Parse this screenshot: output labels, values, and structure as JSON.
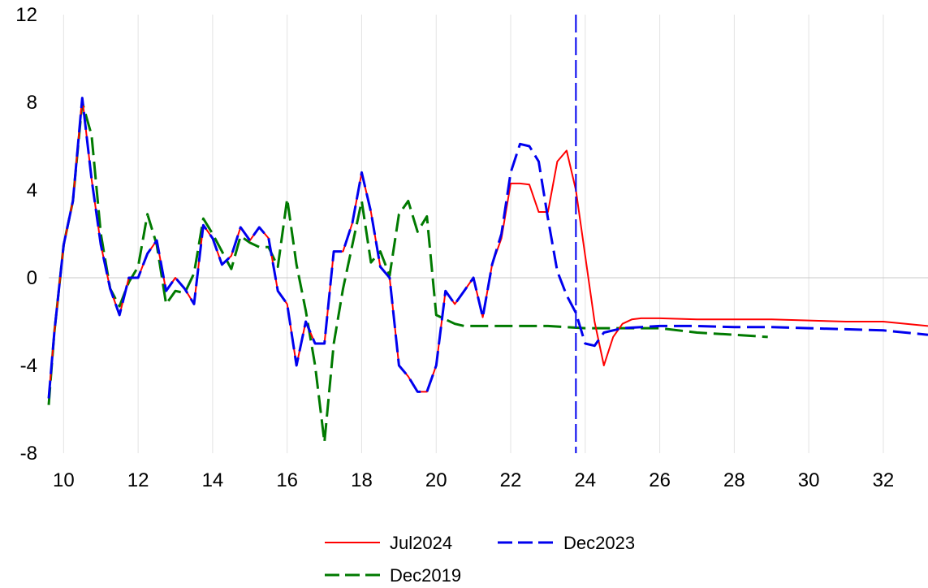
{
  "chart_data": {
    "type": "line",
    "title": "",
    "xlabel": "",
    "ylabel": "",
    "xlim": [
      9.6,
      33.2
    ],
    "ylim": [
      -8,
      12
    ],
    "xticks": [
      "10",
      "12",
      "14",
      "16",
      "18",
      "20",
      "22",
      "24",
      "26",
      "28",
      "30",
      "32"
    ],
    "xtick_values": [
      10,
      12,
      14,
      16,
      18,
      20,
      22,
      24,
      26,
      28,
      30,
      32
    ],
    "yticks": [
      "12",
      "8",
      "4",
      "0",
      "-4",
      "-8"
    ],
    "ytick_values": [
      12,
      8,
      4,
      0,
      -4,
      -8
    ],
    "grid": "vertical",
    "legend_position": "bottom",
    "vertical_marker": {
      "x": 23.75,
      "color": "#0000ee",
      "style": "dashed"
    },
    "series": [
      {
        "name": "Jul2024",
        "color": "#ff0000",
        "style": "solid",
        "x": [
          9.6,
          9.75,
          10.0,
          10.25,
          10.5,
          10.75,
          11.0,
          11.25,
          11.5,
          11.75,
          12.0,
          12.25,
          12.5,
          12.75,
          13.0,
          13.25,
          13.5,
          13.75,
          14.0,
          14.25,
          14.5,
          14.75,
          15.0,
          15.25,
          15.5,
          15.75,
          16.0,
          16.25,
          16.5,
          16.75,
          17.0,
          17.25,
          17.5,
          17.75,
          18.0,
          18.25,
          18.5,
          18.75,
          19.0,
          19.25,
          19.5,
          19.75,
          20.0,
          20.25,
          20.5,
          20.75,
          21.0,
          21.25,
          21.5,
          21.75,
          22.0,
          22.25,
          22.5,
          22.75,
          23.0,
          23.25,
          23.5,
          23.75,
          24.0,
          24.25,
          24.5,
          24.75,
          25.0,
          25.25,
          25.5,
          25.75,
          26.0,
          27.0,
          28.0,
          29.0,
          30.0,
          31.0,
          32.0,
          33.2
        ],
        "values": [
          -5.5,
          -2.5,
          1.5,
          3.5,
          8.2,
          4.5,
          1.5,
          -0.5,
          -1.7,
          0.0,
          0.0,
          1.1,
          1.7,
          -0.6,
          0.0,
          -0.5,
          -1.2,
          2.4,
          1.8,
          0.6,
          1.0,
          2.3,
          1.7,
          2.3,
          1.8,
          -0.6,
          -1.2,
          -4.0,
          -2.0,
          -3.0,
          -3.0,
          1.2,
          1.2,
          2.5,
          4.8,
          3.0,
          0.5,
          0.0,
          -4.0,
          -4.5,
          -5.2,
          -5.2,
          -4.0,
          -0.6,
          -1.2,
          -0.6,
          0.0,
          -1.8,
          0.6,
          1.8,
          4.3,
          4.3,
          4.25,
          3.0,
          3.0,
          5.3,
          5.8,
          4.0,
          1.0,
          -2.0,
          -4.0,
          -2.7,
          -2.1,
          -1.9,
          -1.85,
          -1.85,
          -1.85,
          -1.9,
          -1.9,
          -1.9,
          -1.95,
          -2.0,
          -2.0,
          -2.2
        ]
      },
      {
        "name": "Dec2023",
        "color": "#0000ee",
        "style": "dashed",
        "x": [
          9.6,
          9.75,
          10.0,
          10.25,
          10.5,
          10.75,
          11.0,
          11.25,
          11.5,
          11.75,
          12.0,
          12.25,
          12.5,
          12.75,
          13.0,
          13.25,
          13.5,
          13.75,
          14.0,
          14.25,
          14.5,
          14.75,
          15.0,
          15.25,
          15.5,
          15.75,
          16.0,
          16.25,
          16.5,
          16.75,
          17.0,
          17.25,
          17.5,
          17.75,
          18.0,
          18.25,
          18.5,
          18.75,
          19.0,
          19.25,
          19.5,
          19.75,
          20.0,
          20.25,
          20.5,
          20.75,
          21.0,
          21.25,
          21.5,
          21.75,
          22.0,
          22.25,
          22.5,
          22.75,
          23.0,
          23.25,
          23.5,
          23.75,
          24.0,
          24.25,
          24.5,
          24.75,
          25.0,
          26.0,
          27.0,
          28.0,
          29.0,
          30.0,
          31.0,
          32.0,
          33.2
        ],
        "values": [
          -5.5,
          -2.5,
          1.5,
          3.5,
          8.2,
          4.5,
          1.5,
          -0.5,
          -1.7,
          0.0,
          0.0,
          1.1,
          1.7,
          -0.6,
          0.0,
          -0.5,
          -1.2,
          2.4,
          1.8,
          0.6,
          1.0,
          2.3,
          1.7,
          2.3,
          1.8,
          -0.6,
          -1.2,
          -4.0,
          -2.0,
          -3.0,
          -3.0,
          1.2,
          1.2,
          2.5,
          4.8,
          3.0,
          0.5,
          0.0,
          -4.0,
          -4.5,
          -5.2,
          -5.2,
          -4.0,
          -0.6,
          -1.2,
          -0.6,
          0.0,
          -1.8,
          0.6,
          2.0,
          4.8,
          6.1,
          6.0,
          5.3,
          2.7,
          0.3,
          -0.8,
          -1.6,
          -3.0,
          -3.1,
          -2.5,
          -2.4,
          -2.3,
          -2.2,
          -2.2,
          -2.25,
          -2.25,
          -2.3,
          -2.35,
          -2.4,
          -2.6
        ]
      },
      {
        "name": "Dec2019",
        "color": "#007a00",
        "style": "dashed",
        "x": [
          9.6,
          9.75,
          10.0,
          10.25,
          10.5,
          10.75,
          11.0,
          11.25,
          11.5,
          11.75,
          12.0,
          12.25,
          12.5,
          12.75,
          13.0,
          13.25,
          13.5,
          13.75,
          14.0,
          14.25,
          14.5,
          14.75,
          15.0,
          15.25,
          15.5,
          15.75,
          16.0,
          16.25,
          16.5,
          16.75,
          17.0,
          17.25,
          17.5,
          17.75,
          18.0,
          18.25,
          18.5,
          18.75,
          19.0,
          19.25,
          19.5,
          19.75,
          20.0,
          20.25,
          20.5,
          20.75,
          21.0,
          21.5,
          22.0,
          23.0,
          24.0,
          25.0,
          26.0,
          27.0,
          28.0,
          28.9
        ],
        "values": [
          -5.8,
          -2.5,
          1.5,
          3.5,
          8.0,
          6.5,
          2.0,
          -0.5,
          -1.3,
          -0.2,
          0.5,
          2.9,
          1.5,
          -1.2,
          -0.6,
          -0.7,
          0.2,
          2.7,
          2.0,
          1.2,
          0.4,
          1.9,
          1.6,
          1.4,
          1.4,
          0.5,
          3.6,
          0.6,
          -1.5,
          -4.0,
          -7.5,
          -3.0,
          -0.5,
          1.5,
          3.5,
          0.7,
          1.2,
          0.1,
          2.9,
          3.5,
          2.1,
          2.8,
          -1.7,
          -1.9,
          -2.1,
          -2.2,
          -2.2,
          -2.2,
          -2.2,
          -2.2,
          -2.3,
          -2.3,
          -2.3,
          -2.5,
          -2.6,
          -2.7
        ]
      }
    ]
  }
}
